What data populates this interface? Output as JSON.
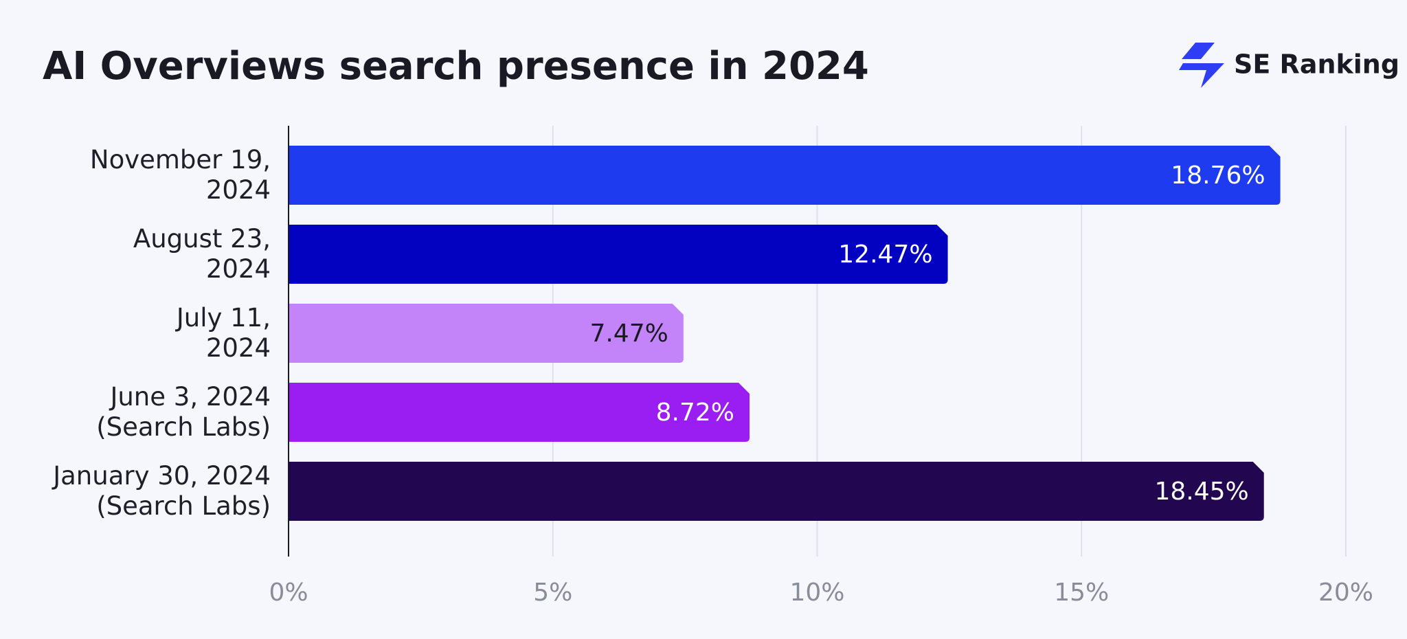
{
  "chart_data": {
    "type": "bar",
    "orientation": "horizontal",
    "title": "AI Overviews search presence in 2024",
    "logo": "SE Ranking",
    "categories": [
      "November 19,\n2024",
      "August 23,\n2024",
      "July 11,\n2024",
      "June 3, 2024\n(Search Labs)",
      "January 30, 2024\n(Search Labs)"
    ],
    "values": [
      18.76,
      12.47,
      7.47,
      8.72,
      18.45
    ],
    "value_labels": [
      "18.76%",
      "12.47%",
      "7.47%",
      "8.72%",
      "18.45%"
    ],
    "colors": [
      "#1f3bf0",
      "#0202c0",
      "#c384fa",
      "#9a1ef2",
      "#22064f"
    ],
    "xlim": [
      0,
      20
    ],
    "xticks": [
      {
        "value": 0,
        "label": "0%"
      },
      {
        "value": 5,
        "label": "5%"
      },
      {
        "value": 10,
        "label": "10%"
      },
      {
        "value": 15,
        "label": "15%"
      },
      {
        "value": 20,
        "label": "20%"
      }
    ],
    "grid": true
  }
}
